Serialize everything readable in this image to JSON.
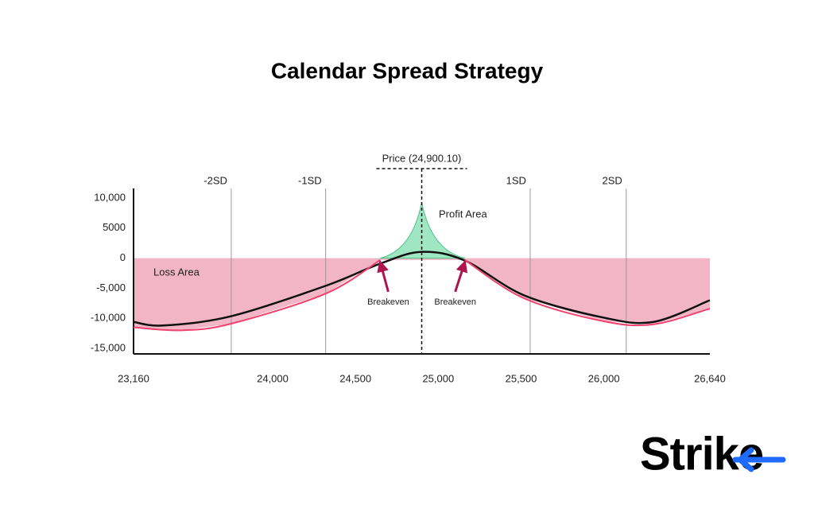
{
  "chart_data": {
    "type": "line",
    "title": "Calendar Spread Strategy",
    "xlim": [
      23160,
      26640
    ],
    "xticks": [
      {
        "value": 23160,
        "label": "23,160"
      },
      {
        "value": 24000,
        "label": "24,000"
      },
      {
        "value": 24500,
        "label": "24,500"
      },
      {
        "value": 25000,
        "label": "25,000"
      },
      {
        "value": 25500,
        "label": "25,500"
      },
      {
        "value": 26000,
        "label": "26,000"
      },
      {
        "value": 26640,
        "label": "26,640"
      }
    ],
    "ylim": [
      -15000,
      10000
    ],
    "yticks": [
      {
        "value": 10000,
        "label": "10,000"
      },
      5000,
      0,
      {
        "value": -5000,
        "label": "-5,000"
      },
      {
        "value": -10000,
        "label": "-10,000"
      },
      {
        "value": -15000,
        "label": "-15,000"
      }
    ],
    "series": [
      {
        "color": "#111111",
        "x": [
          23160,
          23340,
          23750,
          24320,
          24650,
          24900.1,
          25160,
          25520,
          26000,
          26300,
          26640
        ],
        "values": [
          -10600,
          -11200,
          -9650,
          -4600,
          -900,
          1050,
          -400,
          -6200,
          -9900,
          -10600,
          -7000
        ]
      },
      {
        "color": "#f0426f",
        "x": [
          23160,
          23450,
          23750,
          24320,
          24650,
          24900.1,
          25160,
          25520,
          26000,
          26300,
          26640
        ],
        "values": [
          -11500,
          -12000,
          -10900,
          -5900,
          -300,
          null,
          -300,
          -6700,
          -10500,
          -11000,
          -8400
        ]
      }
    ],
    "loss_area": {
      "label": "Loss Area",
      "color": "#eea3b8"
    },
    "profit_area": {
      "label": "Profit Area",
      "color": "#9fe6c2",
      "x": [
        24650,
        24900.1,
        25160
      ],
      "values": [
        0,
        9300,
        0
      ]
    },
    "price": {
      "label": "Price (24,900.10)",
      "x": 24900.1
    },
    "sd_lines": [
      {
        "label": "-2SD",
        "x": 23750
      },
      {
        "label": "-1SD",
        "x": 24320
      },
      {
        "label": "1SD",
        "x": 25555
      },
      {
        "label": "2SD",
        "x": 26135
      }
    ],
    "breakevens": [
      {
        "label": "Breakeven",
        "x": 24650,
        "y": -300
      },
      {
        "label": "Breakeven",
        "x": 25160,
        "y": -300
      }
    ],
    "brand": "Strike"
  }
}
